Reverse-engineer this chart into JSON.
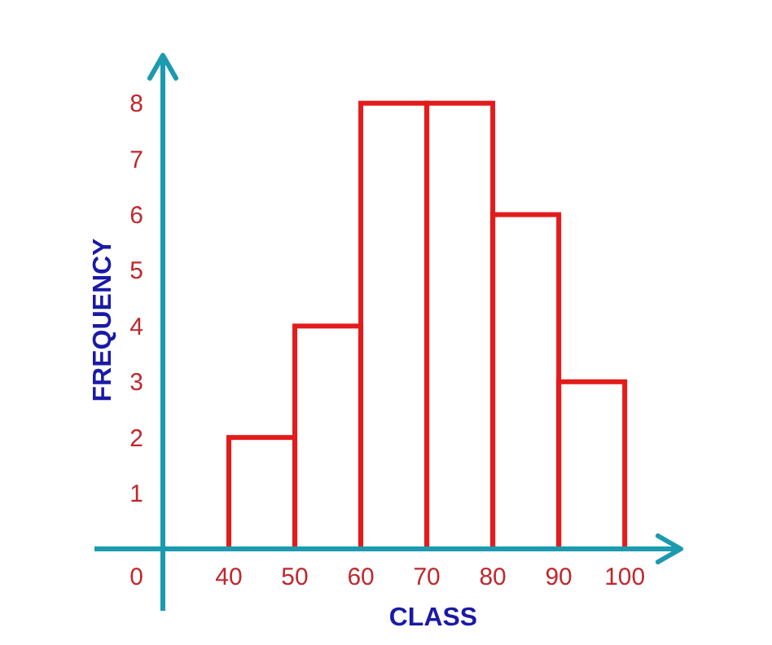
{
  "chart_data": {
    "type": "histogram",
    "xlabel": "CLASS",
    "ylabel": "FREQUENCY",
    "bins": [
      40,
      50,
      60,
      70,
      80,
      90,
      100
    ],
    "values": [
      2,
      4,
      8,
      8,
      6,
      3
    ],
    "color": "#e31b1b",
    "xlim": [
      30,
      108
    ],
    "xticks": [
      40,
      50,
      60,
      70,
      80,
      90,
      100
    ],
    "ylim": [
      0,
      8.8
    ],
    "yticks": [
      1,
      2,
      3,
      4,
      5,
      6,
      7,
      8
    ],
    "grid": false,
    "annotations": [
      "0"
    ]
  }
}
